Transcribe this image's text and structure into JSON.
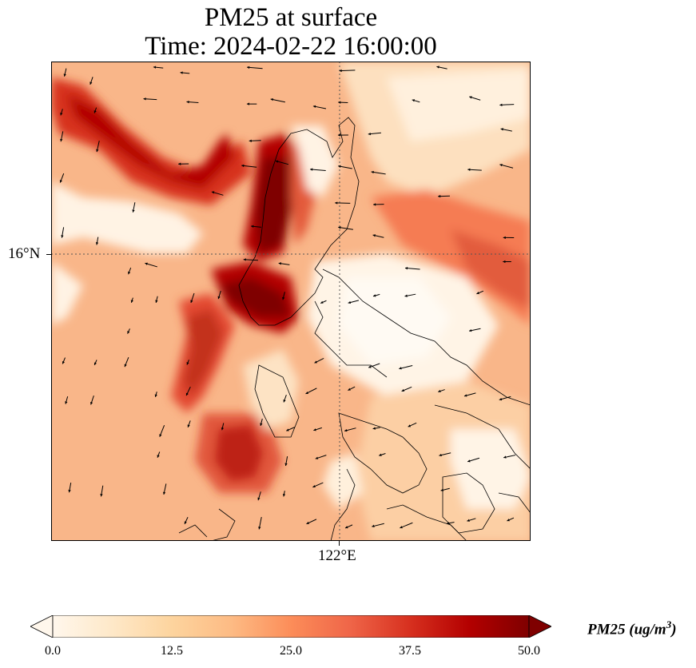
{
  "title": {
    "line1": "PM25 at surface",
    "line2": "Time: 2024-02-22 16:00:00"
  },
  "map": {
    "variable": "PM25",
    "projection": "lat-lon",
    "gridlines": {
      "latitude": "16°N",
      "longitude": "122°E",
      "style": "dotted"
    },
    "overlays": [
      "coastlines",
      "wind-vector-arrows"
    ],
    "wind_arrow_color": "#000000",
    "coastline_color": "#000000"
  },
  "axes": {
    "lat_label": "16°N",
    "lon_label": "122°E"
  },
  "colorbar": {
    "label_base": "PM25 (ug/m",
    "label_exp": "3",
    "label_close": ")",
    "min": 0.0,
    "max": 50.0,
    "extend": "both",
    "cmap": "OrRd",
    "ticks": [
      "0.0",
      "12.5",
      "25.0",
      "37.5",
      "50.0"
    ],
    "colors": [
      "#fff7ec",
      "#fee8c8",
      "#fdd49e",
      "#fdbb84",
      "#fc8d59",
      "#ef6548",
      "#d7301f",
      "#b30000",
      "#7f0000"
    ]
  }
}
